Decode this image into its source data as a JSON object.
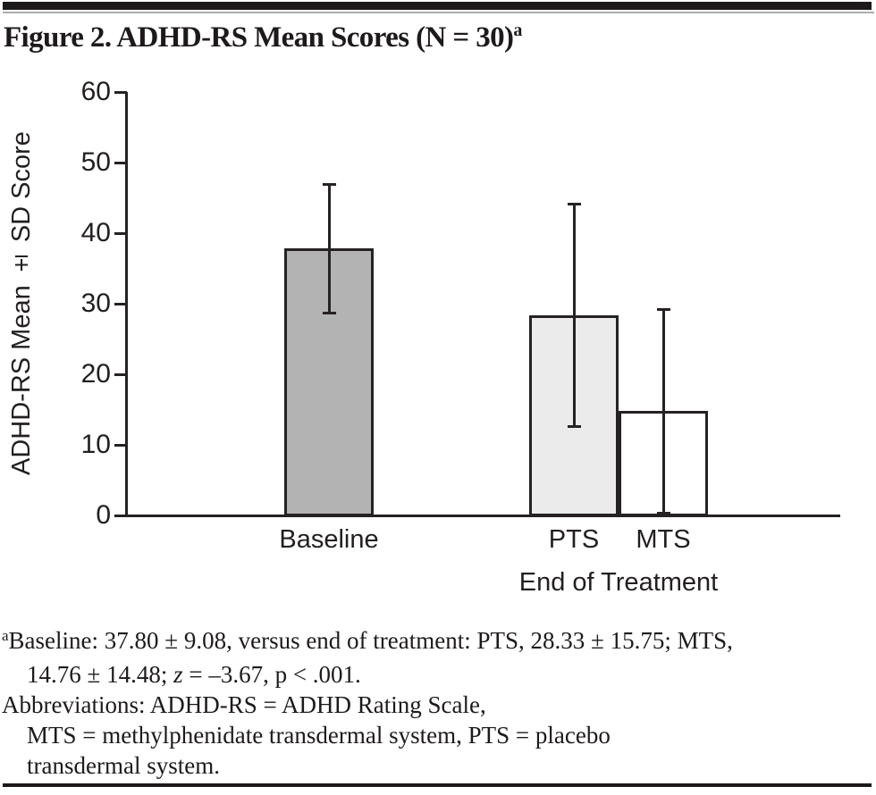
{
  "figure": {
    "title": "Figure 2. ADHD-RS Mean Scores (N = 30)",
    "title_superscript": "a"
  },
  "chart_data": {
    "type": "bar",
    "title": "Figure 2. ADHD-RS Mean Scores (N = 30)a",
    "ylabel": "ADHD-RS Mean ± SD Score",
    "xlabel": "End of Treatment",
    "xlabel_note": "applies to the PTS and MTS end-of-treatment bars",
    "ylim": [
      0,
      60
    ],
    "yticks": [
      0,
      10,
      20,
      30,
      40,
      50,
      60
    ],
    "grid": false,
    "legend_position": "none",
    "categories": [
      "Baseline",
      "PTS",
      "MTS"
    ],
    "series": [
      {
        "name": "ADHD-RS Mean ± SD Score",
        "values": [
          37.8,
          28.33,
          14.76
        ],
        "sd": [
          9.08,
          15.75,
          14.48
        ]
      }
    ],
    "error_bars": "mean ± standard deviation",
    "bar_fill_colors": [
      "#b3b3b3",
      "#ebebeb",
      "#ffffff"
    ],
    "bar_edge_color": "#262223"
  },
  "footnotes": {
    "lines": [
      {
        "indent": false,
        "segments": [
          {
            "text": "a",
            "sup": true
          },
          {
            "text": "Baseline: 37.80 ± 9.08, versus end of treatment: PTS, 28.33 ± 15.75; MTS,"
          }
        ]
      },
      {
        "indent": true,
        "segments": [
          {
            "text": "14.76 ± 14.48; "
          },
          {
            "text": "z",
            "italic": true
          },
          {
            "text": " = –3.67, p < .001."
          }
        ]
      },
      {
        "indent": false,
        "segments": [
          {
            "text": "Abbreviations: ADHD-RS = ADHD Rating Scale,"
          }
        ]
      },
      {
        "indent": true,
        "segments": [
          {
            "text": "MTS = methylphenidate transdermal system, PTS = placebo"
          }
        ]
      },
      {
        "indent": true,
        "segments": [
          {
            "text": "transdermal system."
          }
        ]
      }
    ]
  },
  "colors": {
    "ink": "#1d191a",
    "axis": "#262223",
    "thin_rule": "#aeaeae",
    "baseline_bar": "#b3b3b3",
    "pts_bar": "#ebebeb",
    "mts_bar": "#ffffff"
  }
}
